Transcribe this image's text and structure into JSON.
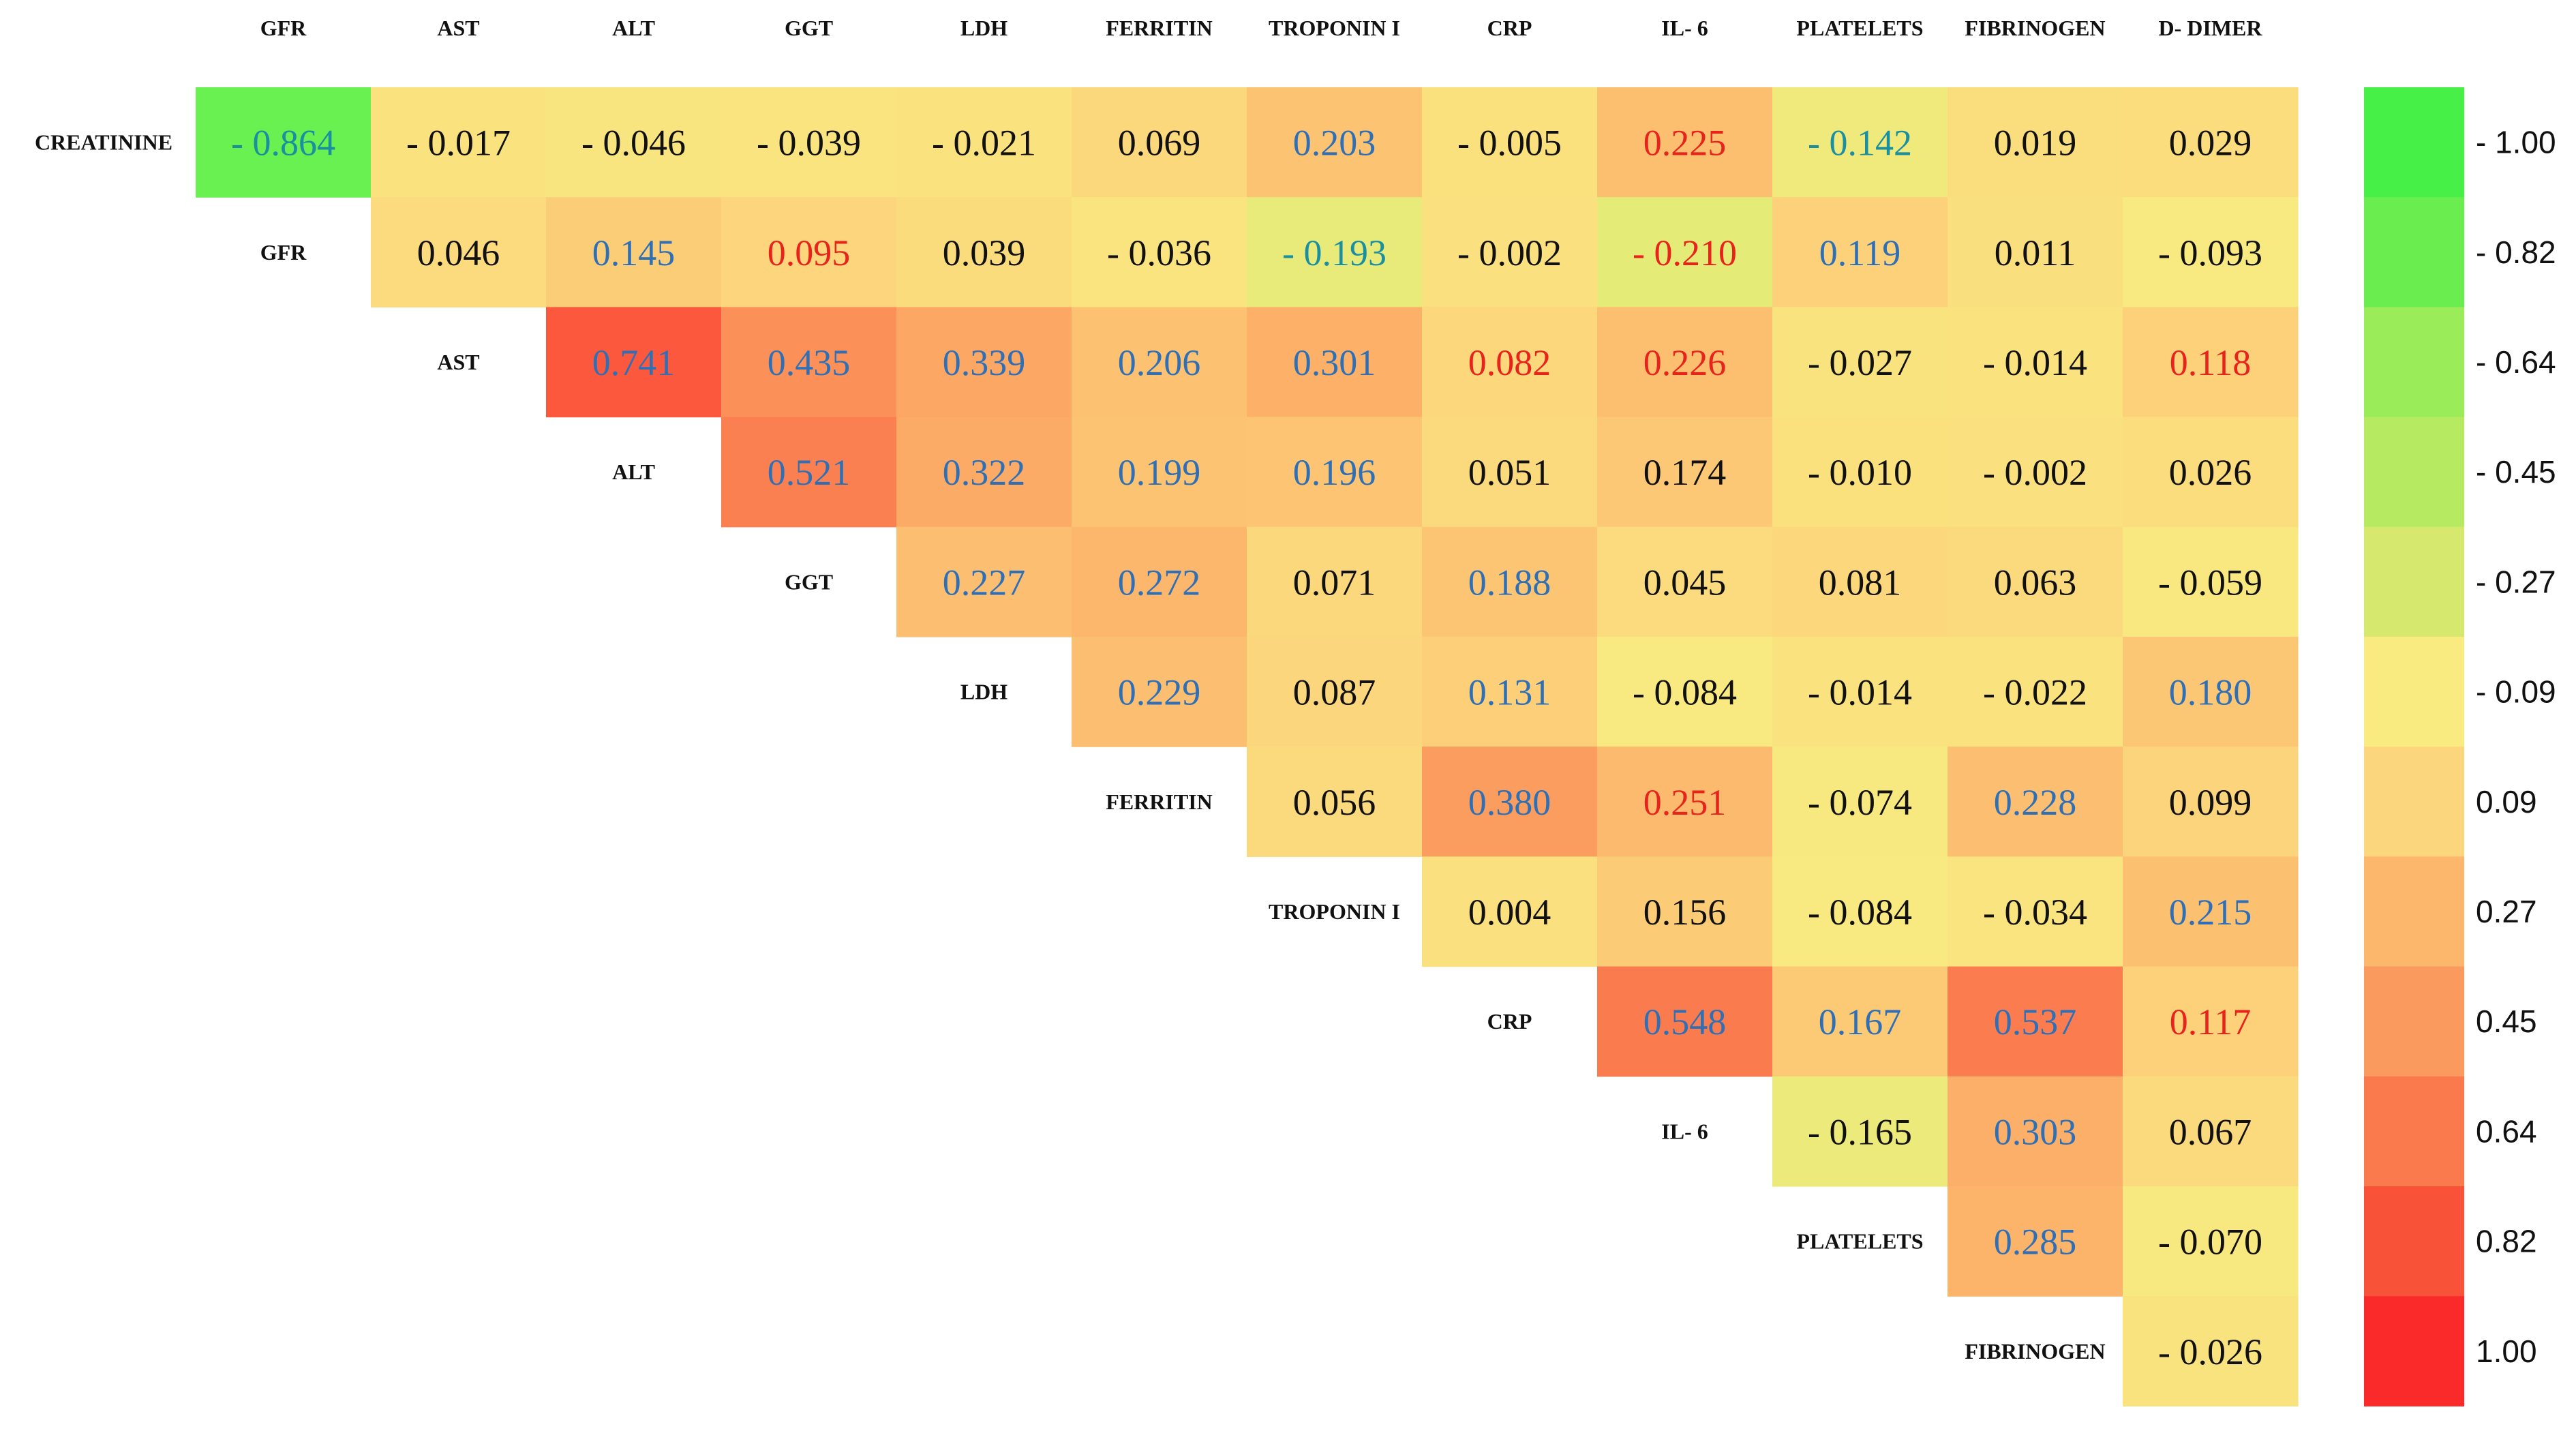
{
  "chart_data": {
    "type": "heatmap",
    "title": "",
    "columns": [
      "GFR",
      "AST",
      "ALT",
      "GGT",
      "LDH",
      "FERRITIN",
      "TROPONIN I",
      "CRP",
      "IL- 6",
      "PLATELETS",
      "FIBRINOGEN",
      "D- DIMER"
    ],
    "rows": [
      "CREATININE",
      "GFR",
      "AST",
      "ALT",
      "GGT",
      "LDH",
      "FERRITIN",
      "TROPONIN I",
      "CRP",
      "IL- 6",
      "PLATELETS",
      "FIBRINOGEN"
    ],
    "value_text": [
      [
        "- 0.864",
        "- 0.017",
        "- 0.046",
        "- 0.039",
        "- 0.021",
        "0.069",
        "0.203",
        "- 0.005",
        "0.225",
        "- 0.142",
        "0.019",
        "0.029"
      ],
      [
        "0.046",
        "0.145",
        "0.095",
        "0.039",
        "- 0.036",
        "- 0.193",
        "- 0.002",
        "- 0.210",
        "0.119",
        "0.011",
        "- 0.093"
      ],
      [
        "0.741",
        "0.435",
        "0.339",
        "0.206",
        "0.301",
        "0.082",
        "0.226",
        "- 0.027",
        "- 0.014",
        "0.118"
      ],
      [
        "0.521",
        "0.322",
        "0.199",
        "0.196",
        "0.051",
        "0.174",
        "- 0.010",
        "- 0.002",
        "0.026"
      ],
      [
        "0.227",
        "0.272",
        "0.071",
        "0.188",
        "0.045",
        "0.081",
        "0.063",
        "- 0.059"
      ],
      [
        "0.229",
        "0.087",
        "0.131",
        "- 0.084",
        "- 0.014",
        "- 0.022",
        "0.180"
      ],
      [
        "0.056",
        "0.380",
        "0.251",
        "- 0.074",
        "0.228",
        "0.099"
      ],
      [
        "0.004",
        "0.156",
        "- 0.084",
        "- 0.034",
        "0.215"
      ],
      [
        "0.548",
        "0.167",
        "0.537",
        "0.117"
      ],
      [
        "- 0.165",
        "0.303",
        "0.067"
      ],
      [
        "0.285",
        "- 0.070"
      ],
      [
        "- 0.026"
      ]
    ],
    "values": [
      [
        -0.864,
        -0.017,
        -0.046,
        -0.039,
        -0.021,
        0.069,
        0.203,
        -0.005,
        0.225,
        -0.142,
        0.019,
        0.029
      ],
      [
        0.046,
        0.145,
        0.095,
        0.039,
        -0.036,
        -0.193,
        -0.002,
        -0.21,
        0.119,
        0.011,
        -0.093
      ],
      [
        0.741,
        0.435,
        0.339,
        0.206,
        0.301,
        0.082,
        0.226,
        -0.027,
        -0.014,
        0.118
      ],
      [
        0.521,
        0.322,
        0.199,
        0.196,
        0.051,
        0.174,
        -0.01,
        -0.002,
        0.026
      ],
      [
        0.227,
        0.272,
        0.071,
        0.188,
        0.045,
        0.081,
        0.063,
        -0.059
      ],
      [
        0.229,
        0.087,
        0.131,
        -0.084,
        -0.014,
        -0.022,
        0.18
      ],
      [
        0.056,
        0.38,
        0.251,
        -0.074,
        0.228,
        0.099
      ],
      [
        0.004,
        0.156,
        -0.084,
        -0.034,
        0.215
      ],
      [
        0.548,
        0.167,
        0.537,
        0.117
      ],
      [
        -0.165,
        0.303,
        0.067
      ],
      [
        0.285,
        -0.07
      ],
      [
        -0.026
      ]
    ],
    "text_color_class": [
      [
        "g",
        "k",
        "k",
        "k",
        "k",
        "k",
        "b",
        "k",
        "r",
        "g",
        "k",
        "k"
      ],
      [
        "k",
        "b",
        "r",
        "k",
        "k",
        "g",
        "k",
        "r",
        "b",
        "k",
        "k"
      ],
      [
        "b",
        "b",
        "b",
        "b",
        "b",
        "r",
        "r",
        "k",
        "k",
        "r"
      ],
      [
        "b",
        "b",
        "b",
        "b",
        "k",
        "k",
        "k",
        "k",
        "k"
      ],
      [
        "b",
        "b",
        "k",
        "b",
        "k",
        "k",
        "k",
        "k"
      ],
      [
        "b",
        "k",
        "b",
        "k",
        "k",
        "k",
        "b"
      ],
      [
        "k",
        "b",
        "r",
        "k",
        "b",
        "k"
      ],
      [
        "k",
        "k",
        "k",
        "k",
        "b"
      ],
      [
        "b",
        "b",
        "b",
        "r"
      ],
      [
        "k",
        "b",
        "k"
      ],
      [
        "b",
        "k"
      ],
      [
        "k"
      ]
    ],
    "text_colors": {
      "k": "#111111",
      "b": "#2f6fb5",
      "r": "#e8231c",
      "g": "#1a8fa0"
    },
    "color_scale": {
      "stops": [
        {
          "value": -1.0,
          "color": "#4bf249"
        },
        {
          "value": -0.45,
          "color": "#c0ec66"
        },
        {
          "value": -0.09,
          "color": "#f8ea80"
        },
        {
          "value": 0.09,
          "color": "#fcd67c"
        },
        {
          "value": 0.27,
          "color": "#fcb76c"
        },
        {
          "value": 0.45,
          "color": "#fb8d57"
        },
        {
          "value": 0.64,
          "color": "#fa6a46"
        },
        {
          "value": 1.0,
          "color": "#fc2a2a"
        }
      ]
    },
    "legend": {
      "labels": [
        "- 1.00",
        "- 0.82",
        "- 0.64",
        "- 0.45",
        "- 0.27",
        "- 0.09",
        "0.09",
        "0.27",
        "0.45",
        "0.64",
        "0.82",
        "1.00"
      ],
      "colors": [
        "#46f046",
        "#6aee4f",
        "#9aec58",
        "#b6ea60",
        "#d6e86d",
        "#faeb80",
        "#fcd67c",
        "#fcb76c",
        "#fb9a5e",
        "#fa7a4e",
        "#f85238",
        "#fa2a2a"
      ],
      "placement": "right"
    }
  }
}
